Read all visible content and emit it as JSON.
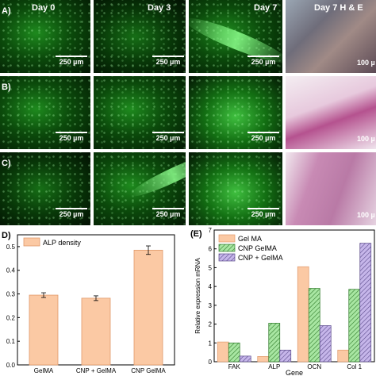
{
  "micrographs": {
    "day_labels": [
      "Day 0",
      "Day 3",
      "Day 7",
      "Day 7 H & E"
    ],
    "row_labels": [
      "A)",
      "B)",
      "C)"
    ],
    "scale_label": "250 µm",
    "he_scale_label": "100 µ"
  },
  "chart_data": [
    {
      "type": "bar",
      "panel_label": "D)",
      "categories": [
        "GelMA",
        "CNP + GelMA",
        "CNP GelMA"
      ],
      "series": [
        {
          "name": "ALP density",
          "values": [
            0.295,
            0.282,
            0.485
          ],
          "errors": [
            0.01,
            0.01,
            0.018
          ],
          "color": "#fbc9a4"
        }
      ],
      "ylim": [
        0,
        0.55
      ],
      "yticks": [
        "0.0",
        "0.1",
        "0.2",
        "0.3",
        "0.4",
        "0.5"
      ],
      "legend": "top-left"
    },
    {
      "type": "bar",
      "panel_label": "(E)",
      "categories": [
        "FAK",
        "ALP",
        "OCN",
        "Col 1"
      ],
      "series": [
        {
          "name": "Gel MA",
          "values": [
            1.05,
            0.28,
            5.05,
            0.62
          ],
          "color": "#fbc9a4",
          "pattern": "solid"
        },
        {
          "name": "CNP GelMA",
          "values": [
            1.0,
            2.05,
            3.9,
            3.85
          ],
          "color": "#a8e6a2",
          "pattern": "diagonal"
        },
        {
          "name": "CNP + GelMA",
          "values": [
            0.3,
            0.62,
            1.92,
            6.3
          ],
          "color": "#c6b6ea",
          "pattern": "diagonal"
        }
      ],
      "ylabel": "Relative expression mRNA",
      "xlabel": "Gene",
      "ylim": [
        0,
        7
      ],
      "yticks": [
        "0",
        "1",
        "2",
        "3",
        "4",
        "5",
        "6",
        "7"
      ],
      "legend": "top-left"
    }
  ]
}
